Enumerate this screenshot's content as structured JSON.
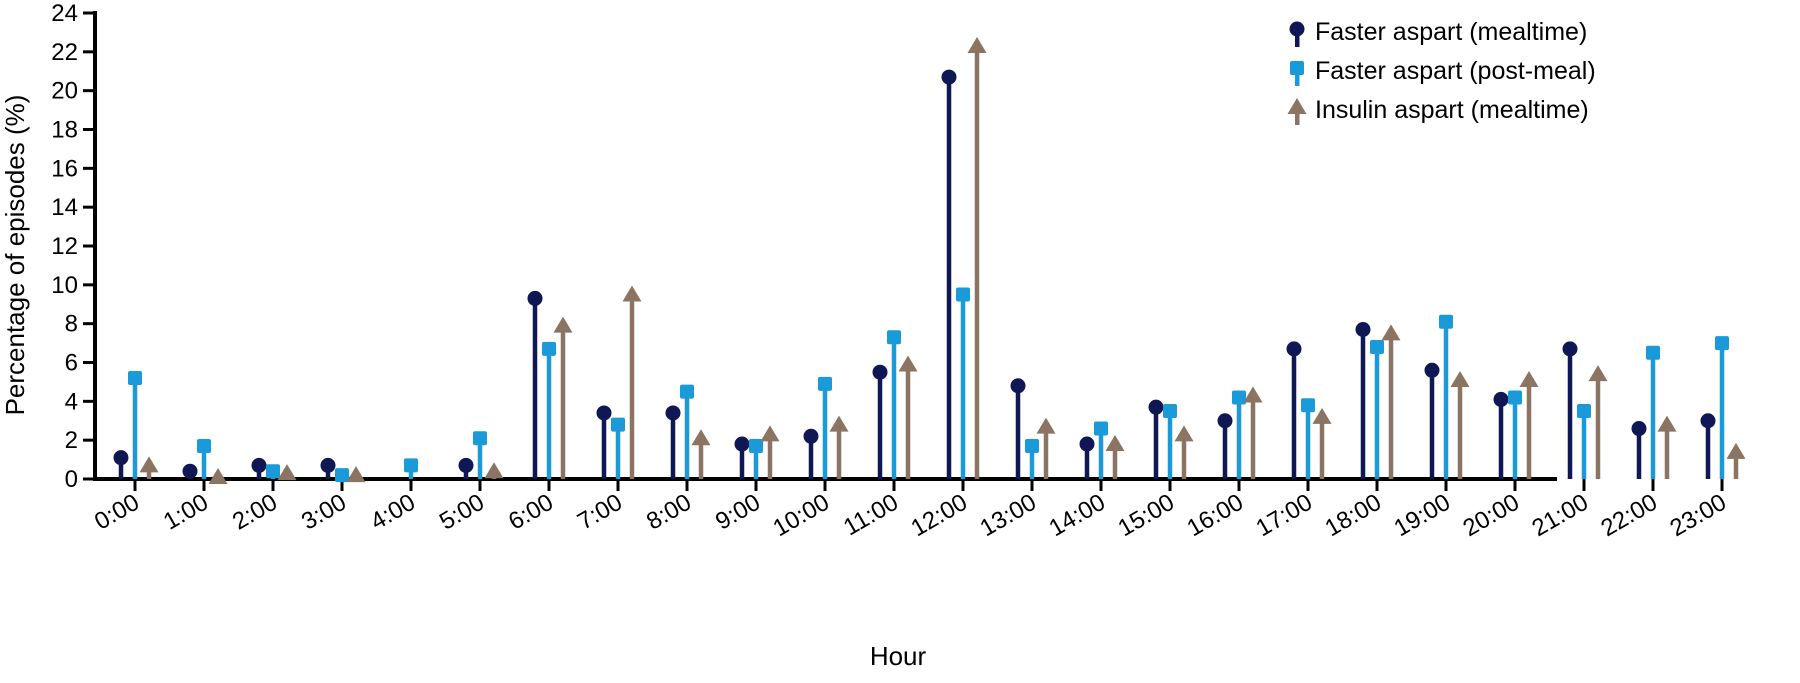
{
  "chart_data": {
    "type": "lollipop",
    "title": "",
    "xlabel": "Hour",
    "ylabel": "Percentage of episodes (%)",
    "ylim": [
      0,
      24
    ],
    "yticks": [
      0,
      2,
      4,
      6,
      8,
      10,
      12,
      14,
      16,
      18,
      20,
      22,
      24
    ],
    "categories": [
      "0:00",
      "1:00",
      "2:00",
      "3:00",
      "4:00",
      "5:00",
      "6:00",
      "7:00",
      "8:00",
      "9:00",
      "10:00",
      "11:00",
      "12:00",
      "13:00",
      "14:00",
      "15:00",
      "16:00",
      "17:00",
      "18:00",
      "19:00",
      "20:00",
      "21:00",
      "22:00",
      "23:00"
    ],
    "legend_position": "top-right",
    "grid": false,
    "series": [
      {
        "name": "Faster aspart (mealtime)",
        "marker": "circle",
        "color": "#0f1754",
        "values": [
          1.1,
          0.4,
          0.7,
          0.7,
          null,
          0.7,
          9.3,
          3.4,
          3.4,
          1.8,
          2.2,
          5.5,
          20.7,
          4.8,
          1.8,
          3.7,
          3.0,
          6.7,
          7.7,
          5.6,
          4.1,
          6.7,
          2.6,
          3.0
        ]
      },
      {
        "name": "Faster aspart (post-meal)",
        "marker": "square",
        "color": "#1a9ad9",
        "values": [
          5.2,
          1.7,
          0.4,
          0.2,
          0.7,
          2.1,
          6.7,
          2.8,
          4.5,
          1.7,
          4.9,
          7.3,
          9.5,
          1.7,
          2.6,
          3.5,
          4.2,
          3.8,
          6.8,
          8.1,
          4.2,
          3.5,
          6.5,
          7.0
        ]
      },
      {
        "name": "Insulin aspart (mealtime)",
        "marker": "triangle",
        "color": "#8b7462",
        "values": [
          0.7,
          0.1,
          0.3,
          0.2,
          null,
          0.4,
          7.9,
          9.5,
          2.1,
          2.3,
          2.8,
          5.9,
          22.3,
          2.7,
          1.8,
          2.3,
          4.3,
          3.2,
          7.5,
          5.1,
          5.1,
          5.4,
          2.8,
          1.4
        ]
      }
    ]
  }
}
